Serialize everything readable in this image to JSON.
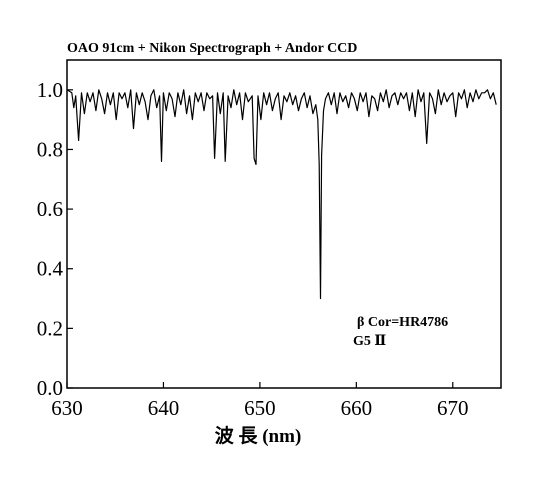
{
  "chart_data": {
    "type": "line",
    "title": "OAO 91cm + Nikon Spectrograph + Andor CCD",
    "xlabel": "波 長 (nm)",
    "ylabel": "",
    "xlim": [
      630,
      675
    ],
    "ylim": [
      0,
      1.1
    ],
    "xticks": [
      630,
      640,
      650,
      660,
      670
    ],
    "xtick_labels": [
      "630",
      "640",
      "650",
      "660",
      "670"
    ],
    "yticks": [
      0.0,
      0.2,
      0.4,
      0.6,
      0.8,
      1.0
    ],
    "ytick_labels": [
      "0.0",
      "0.2",
      "0.4",
      "0.6",
      "0.8",
      "1.0"
    ],
    "grid": false,
    "annotations": [
      "β Cor=HR4786",
      "G5 Ⅱ"
    ],
    "series": [
      {
        "x": [
          630.0,
          630.5,
          630.7,
          630.9,
          631.2,
          631.5,
          631.8,
          632.1,
          632.4,
          632.7,
          633.0,
          633.3,
          633.6,
          633.9,
          634.2,
          634.5,
          634.8,
          635.1,
          635.4,
          635.7,
          636.0,
          636.3,
          636.6,
          636.9,
          637.2,
          637.5,
          637.8,
          638.1,
          638.4,
          638.7,
          639.0,
          639.3,
          639.6,
          639.8,
          640.0,
          640.3,
          640.6,
          640.9,
          641.2,
          641.5,
          641.8,
          642.1,
          642.4,
          642.7,
          643.0,
          643.3,
          643.6,
          643.9,
          644.2,
          644.5,
          644.8,
          645.1,
          645.3,
          645.6,
          645.9,
          646.2,
          646.4,
          646.7,
          647.0,
          647.3,
          647.6,
          647.9,
          648.2,
          648.5,
          648.8,
          649.2,
          649.4,
          649.6,
          649.8,
          650.1,
          650.4,
          650.7,
          651.0,
          651.3,
          651.6,
          651.9,
          652.2,
          652.5,
          652.8,
          653.1,
          653.4,
          653.7,
          654.0,
          654.3,
          654.6,
          654.9,
          655.2,
          655.5,
          655.8,
          656.0,
          656.15,
          656.28,
          656.4,
          656.6,
          656.8,
          657.1,
          657.4,
          657.7,
          658.0,
          658.3,
          658.6,
          658.9,
          659.2,
          659.5,
          659.8,
          660.1,
          660.4,
          660.7,
          661.0,
          661.3,
          661.6,
          661.9,
          662.2,
          662.5,
          662.8,
          663.1,
          663.4,
          663.7,
          664.0,
          664.3,
          664.6,
          664.9,
          665.2,
          665.5,
          665.8,
          666.1,
          666.4,
          666.7,
          667.0,
          667.3,
          667.6,
          667.9,
          668.2,
          668.5,
          668.8,
          669.1,
          669.4,
          669.7,
          670.0,
          670.3,
          670.6,
          670.9,
          671.2,
          671.5,
          671.8,
          672.1,
          672.4,
          672.7,
          673.0,
          673.3,
          673.6,
          673.9,
          674.2,
          674.5
        ],
        "y": [
          1.0,
          0.99,
          0.94,
          0.98,
          0.83,
          0.99,
          0.92,
          0.99,
          0.96,
          0.99,
          0.93,
          1.0,
          0.97,
          0.92,
          0.99,
          0.95,
          0.99,
          0.9,
          0.99,
          0.97,
          0.99,
          0.94,
          1.0,
          0.87,
          0.99,
          0.95,
          0.99,
          0.96,
          0.9,
          0.98,
          1.0,
          0.94,
          0.98,
          0.76,
          0.99,
          0.93,
          0.99,
          0.97,
          0.91,
          0.99,
          0.95,
          1.0,
          0.92,
          0.98,
          0.9,
          0.99,
          0.96,
          0.99,
          0.93,
          0.99,
          0.97,
          0.98,
          0.77,
          0.99,
          0.92,
          0.99,
          0.76,
          0.98,
          0.94,
          1.0,
          0.95,
          0.99,
          0.9,
          0.99,
          0.96,
          0.98,
          0.77,
          0.75,
          0.98,
          0.9,
          0.99,
          0.95,
          0.99,
          0.93,
          0.97,
          0.99,
          0.9,
          0.98,
          0.96,
          0.99,
          0.95,
          0.98,
          0.93,
          0.97,
          0.99,
          0.94,
          0.98,
          0.92,
          0.95,
          0.9,
          0.75,
          0.3,
          0.78,
          0.93,
          0.97,
          0.99,
          0.95,
          0.99,
          0.92,
          0.99,
          0.96,
          0.98,
          0.94,
          0.99,
          0.97,
          0.93,
          0.99,
          0.96,
          0.99,
          0.91,
          0.98,
          0.97,
          0.93,
          0.99,
          0.96,
          1.0,
          0.94,
          0.98,
          0.99,
          0.95,
          0.99,
          0.97,
          0.99,
          0.93,
          0.99,
          0.91,
          1.0,
          0.96,
          0.99,
          0.82,
          0.99,
          0.97,
          0.92,
          1.0,
          0.95,
          0.99,
          0.96,
          0.98,
          0.99,
          0.91,
          0.99,
          0.97,
          1.0,
          0.94,
          0.99,
          0.96,
          1.0,
          0.97,
          0.99,
          0.99,
          1.0,
          0.97,
          0.99,
          0.95
        ]
      }
    ]
  }
}
